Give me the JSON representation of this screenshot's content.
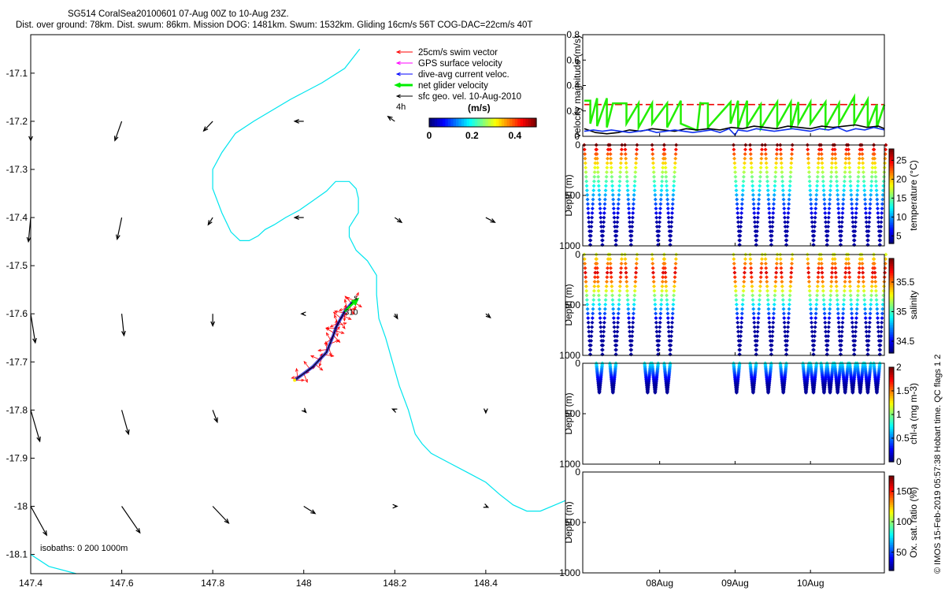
{
  "header": {
    "title": "SG514 CoralSea20100601 07-Aug 00Z to 10-Aug 23Z.",
    "subtitle": "Dist. over ground: 78km. Dist. swum: 86km. Mission DOG: 1481km. Swum: 1532km. Gliding 16cm/s 56T COG-DAC=22cm/s 40T"
  },
  "footer": {
    "credit": "© IMOS 15-Feb-2019 05:57:38 Hobart time. QC flags 1 2"
  },
  "chart_data": [
    {
      "type": "map",
      "x_ticks": [
        "147.4",
        "147.6",
        "147.8",
        "148",
        "148.2",
        "148.4"
      ],
      "x_tick_values": [
        147.4,
        147.6,
        147.8,
        148.0,
        148.2,
        148.4
      ],
      "y_ticks": [
        "-17.1",
        "-17.2",
        "-17.3",
        "-17.4",
        "-17.5",
        "-17.6",
        "-17.7",
        "-17.8",
        "-17.9",
        "-18",
        "-18.1"
      ],
      "y_tick_values": [
        -17.1,
        -17.2,
        -17.3,
        -17.4,
        -17.5,
        -17.6,
        -17.7,
        -17.8,
        -17.9,
        -18.0,
        -18.1
      ],
      "xlim": [
        147.4,
        148.575
      ],
      "ylim": [
        -18.14,
        -17.02
      ],
      "legend": [
        "25cm/s swim vector",
        "GPS surface velocity",
        "dive-avg current veloc.",
        "net glider velocity",
        "sfc geo. vel. 10-Aug-2010"
      ],
      "legend_colors": [
        "#ff0000",
        "#ff00ff",
        "#0000ff",
        "#00ee00",
        "#000000"
      ],
      "legend_placement": "top-right",
      "colorbar_title": "(m/s)",
      "colorbar_ticks": [
        "0",
        "0.2",
        "0.4"
      ],
      "colorbar_tick_values": [
        0,
        0.2,
        0.4
      ],
      "colorbar_range": [
        0,
        0.5
      ],
      "annotation_4h": "4h",
      "isobaths_label": "isobaths: 0   200  1000m",
      "isobath_color": "#00e5ee",
      "isobath_line": [
        [
          148.123,
          -17.05
        ],
        [
          148.09,
          -17.09
        ],
        [
          148.04,
          -17.12
        ],
        [
          147.97,
          -17.155
        ],
        [
          147.89,
          -17.2
        ],
        [
          147.85,
          -17.225
        ],
        [
          147.82,
          -17.265
        ],
        [
          147.8,
          -17.3
        ],
        [
          147.8,
          -17.34
        ],
        [
          147.82,
          -17.39
        ],
        [
          147.84,
          -17.43
        ],
        [
          147.86,
          -17.448
        ],
        [
          147.88,
          -17.448
        ],
        [
          147.9,
          -17.438
        ],
        [
          147.915,
          -17.425
        ],
        [
          147.935,
          -17.415
        ],
        [
          147.96,
          -17.4
        ],
        [
          147.99,
          -17.385
        ],
        [
          148.02,
          -17.365
        ],
        [
          148.05,
          -17.345
        ],
        [
          148.07,
          -17.325
        ],
        [
          148.1,
          -17.325
        ],
        [
          148.115,
          -17.34
        ],
        [
          148.12,
          -17.36
        ],
        [
          148.12,
          -17.39
        ],
        [
          148.11,
          -17.405
        ],
        [
          148.1,
          -17.42
        ],
        [
          148.1,
          -17.44
        ],
        [
          148.115,
          -17.468
        ],
        [
          148.14,
          -17.49
        ],
        [
          148.16,
          -17.52
        ],
        [
          148.16,
          -17.56
        ],
        [
          148.165,
          -17.61
        ],
        [
          148.18,
          -17.65
        ],
        [
          148.195,
          -17.7
        ],
        [
          148.21,
          -17.75
        ],
        [
          148.23,
          -17.8
        ],
        [
          148.245,
          -17.85
        ],
        [
          148.26,
          -17.87
        ],
        [
          148.28,
          -17.89
        ],
        [
          148.32,
          -17.91
        ],
        [
          148.36,
          -17.93
        ],
        [
          148.4,
          -17.95
        ],
        [
          148.43,
          -17.975
        ],
        [
          148.46,
          -17.997
        ],
        [
          148.49,
          -18.01
        ],
        [
          148.52,
          -18.01
        ],
        [
          148.55,
          -17.998
        ],
        [
          148.575,
          -17.988
        ]
      ],
      "isobath_line2": [
        [
          147.4,
          -18.1
        ],
        [
          147.44,
          -18.125
        ],
        [
          147.5,
          -18.14
        ]
      ],
      "geo_vectors": [
        [
          147.4,
          -17.2,
          0.0,
          -0.04
        ],
        [
          147.6,
          -17.2,
          -0.015,
          -0.04
        ],
        [
          147.8,
          -17.2,
          -0.02,
          -0.02
        ],
        [
          148.0,
          -17.2,
          -0.02,
          0.0
        ],
        [
          148.2,
          -17.2,
          -0.015,
          0.01
        ],
        [
          147.4,
          -17.4,
          -0.005,
          -0.05
        ],
        [
          147.6,
          -17.4,
          -0.01,
          -0.045
        ],
        [
          147.8,
          -17.4,
          -0.01,
          -0.015
        ],
        [
          148.0,
          -17.4,
          -0.02,
          0.0
        ],
        [
          148.2,
          -17.4,
          0.015,
          -0.01
        ],
        [
          148.4,
          -17.4,
          0.02,
          -0.01
        ],
        [
          147.4,
          -17.6,
          0.01,
          -0.06
        ],
        [
          147.6,
          -17.6,
          0.005,
          -0.045
        ],
        [
          147.8,
          -17.6,
          0.0,
          -0.025
        ],
        [
          148.0,
          -17.6,
          -0.005,
          0.0
        ],
        [
          148.2,
          -17.6,
          0.006,
          -0.01
        ],
        [
          148.4,
          -17.6,
          0.01,
          -0.008
        ],
        [
          147.4,
          -17.8,
          0.02,
          -0.065
        ],
        [
          147.6,
          -17.8,
          0.015,
          -0.05
        ],
        [
          147.8,
          -17.8,
          0.01,
          -0.025
        ],
        [
          148.0,
          -17.8,
          0.005,
          -0.005
        ],
        [
          148.2,
          -17.8,
          -0.005,
          0.002
        ],
        [
          148.4,
          -17.8,
          0.0,
          -0.006
        ],
        [
          147.4,
          -18.0,
          0.035,
          -0.06
        ],
        [
          147.6,
          -18.0,
          0.04,
          -0.055
        ],
        [
          147.8,
          -18.0,
          0.035,
          -0.035
        ],
        [
          148.0,
          -18.0,
          0.025,
          -0.015
        ],
        [
          148.2,
          -18.0,
          0.005,
          0.0
        ],
        [
          148.4,
          -18.0,
          0.005,
          -0.002
        ]
      ],
      "glider_track": [
        [
          147.98,
          -17.738
        ],
        [
          148.02,
          -17.71
        ],
        [
          148.05,
          -17.68
        ],
        [
          148.065,
          -17.645
        ],
        [
          148.07,
          -17.63
        ],
        [
          148.08,
          -17.612
        ],
        [
          148.09,
          -17.595
        ],
        [
          148.105,
          -17.578
        ],
        [
          148.118,
          -17.57
        ]
      ],
      "dive_labels": [
        "s",
        "310"
      ]
    },
    {
      "type": "line",
      "ylabel": "velocity magnitude (m/s)",
      "ylim": [
        0,
        0.8
      ],
      "y_ticks": [
        "0",
        "0.2",
        "0.4",
        "0.6",
        "0.8"
      ],
      "y_tick_values": [
        0,
        0.2,
        0.4,
        0.6,
        0.8
      ],
      "x_ticks": [
        "08Aug",
        "09Aug",
        "10Aug"
      ],
      "x_tick_values": [
        1,
        2,
        3
      ],
      "xlim": [
        -0.02,
        3.98
      ],
      "series": [
        {
          "color": "#ee0000",
          "style": "dashed",
          "x": [
            0.0,
            1.0,
            2.0,
            3.98
          ],
          "values": [
            0.25,
            0.25,
            0.25,
            0.25
          ]
        },
        {
          "color": "#22ee00",
          "x": [
            0.0,
            0.08,
            0.08,
            0.17,
            0.17,
            0.3,
            0.3,
            0.38,
            0.38,
            0.56,
            0.56,
            0.72,
            0.72,
            0.9,
            0.9,
            1.1,
            1.1,
            1.28,
            1.28,
            1.48,
            1.5,
            1.54,
            1.54,
            1.64,
            1.64,
            1.94,
            1.94,
            2.04,
            2.04,
            2.16,
            2.16,
            2.34,
            2.34,
            2.56,
            2.56,
            2.74,
            2.74,
            2.84,
            2.84,
            3.0,
            3.0,
            3.2,
            3.2,
            3.38,
            3.38,
            3.58,
            3.58,
            3.76,
            3.76,
            3.88,
            3.88,
            3.98
          ],
          "values": [
            0.28,
            0.28,
            0.1,
            0.3,
            0.08,
            0.3,
            0.07,
            0.26,
            0.26,
            0.26,
            0.1,
            0.26,
            0.07,
            0.26,
            0.1,
            0.26,
            0.07,
            0.28,
            0.1,
            0.05,
            0.05,
            0.27,
            0.26,
            0.26,
            0.07,
            0.27,
            0.1,
            0.28,
            0.07,
            0.28,
            0.08,
            0.25,
            0.06,
            0.27,
            0.08,
            0.27,
            0.06,
            0.27,
            0.1,
            0.27,
            0.1,
            0.27,
            0.07,
            0.26,
            0.1,
            0.31,
            0.1,
            0.29,
            0.07,
            0.25,
            0.07,
            0.25
          ]
        },
        {
          "color": "#000000",
          "x": [
            0.0,
            0.15,
            0.3,
            0.45,
            0.6,
            0.75,
            0.9,
            1.05,
            1.2,
            1.35,
            1.5,
            1.65,
            1.8,
            1.95,
            2.1,
            2.25,
            2.4,
            2.55,
            2.7,
            2.85,
            3.0,
            3.15,
            3.3,
            3.45,
            3.6,
            3.75,
            3.9,
            3.98
          ],
          "values": [
            0.06,
            0.03,
            0.02,
            0.03,
            0.05,
            0.04,
            0.06,
            0.05,
            0.04,
            0.06,
            0.05,
            0.06,
            0.05,
            0.07,
            0.06,
            0.08,
            0.07,
            0.06,
            0.08,
            0.07,
            0.06,
            0.08,
            0.07,
            0.08,
            0.09,
            0.07,
            0.08,
            0.06
          ]
        },
        {
          "color": "#1030ee",
          "x": [
            0.0,
            0.12,
            0.24,
            0.36,
            0.48,
            0.6,
            0.72,
            0.84,
            0.96,
            1.08,
            1.2,
            1.32,
            1.44,
            1.56,
            1.68,
            1.8,
            1.92,
            2.0,
            2.04,
            2.16,
            2.28,
            2.4,
            2.52,
            2.64,
            2.76,
            2.88,
            3.0,
            3.12,
            3.24,
            3.36,
            3.48,
            3.6,
            3.72,
            3.84,
            3.98
          ],
          "values": [
            0.04,
            0.05,
            0.04,
            0.05,
            0.04,
            0.03,
            0.04,
            0.05,
            0.03,
            0.04,
            0.05,
            0.04,
            0.03,
            0.04,
            0.05,
            0.03,
            0.06,
            0.01,
            0.05,
            0.04,
            0.06,
            0.05,
            0.04,
            0.05,
            0.06,
            0.05,
            0.04,
            0.06,
            0.05,
            0.07,
            0.04,
            0.06,
            0.05,
            0.07,
            0.05
          ]
        }
      ]
    },
    {
      "type": "scatter",
      "ylabel": "Depth (m)",
      "ylim": [
        0,
        1000
      ],
      "y_ticks": [
        "0",
        "500",
        "1000"
      ],
      "y_tick_values": [
        0,
        500,
        1000
      ],
      "colorbar_label": "temperature (°C)",
      "colorbar_ticks": [
        "5",
        "10",
        "15",
        "20",
        "25"
      ],
      "colorbar_tick_values": [
        5,
        10,
        15,
        20,
        25
      ],
      "colorbar_range": [
        3,
        28
      ],
      "surface_value": 27,
      "deep_value": 4,
      "deep_dive_depth": 990,
      "dive_starts": [
        0.0,
        0.16,
        0.34,
        0.54,
        0.9,
        1.06,
        1.98,
        2.2,
        2.4,
        2.6,
        2.96,
        3.14,
        3.32,
        3.5,
        3.68,
        3.84
      ],
      "dive_half_width": 0.08
    },
    {
      "type": "scatter",
      "ylabel": "Depth (m)",
      "ylim": [
        0,
        1000
      ],
      "y_ticks": [
        "0",
        "500",
        "1000"
      ],
      "y_tick_values": [
        0,
        500,
        1000
      ],
      "colorbar_label": "salinity",
      "colorbar_ticks": [
        "34.5",
        "35",
        "35.5"
      ],
      "colorbar_tick_values": [
        34.5,
        35,
        35.5
      ],
      "colorbar_range": [
        34.3,
        35.9
      ],
      "surface_value": 35.25,
      "deep_value": 34.35,
      "max_value": 35.75,
      "max_depth": 180,
      "deep_dive_depth": 990,
      "dive_starts": [
        0.0,
        0.16,
        0.34,
        0.54,
        0.9,
        1.06,
        1.98,
        2.2,
        2.4,
        2.6,
        2.96,
        3.14,
        3.32,
        3.5,
        3.68,
        3.84
      ],
      "dive_half_width": 0.08
    },
    {
      "type": "scatter",
      "ylabel": "Depth (m)",
      "ylim": [
        0,
        1000
      ],
      "y_ticks": [
        "0",
        "500",
        "1000"
      ],
      "y_tick_values": [
        0,
        500,
        1000
      ],
      "colorbar_label": "chl-a (mg m-3)",
      "colorbar_ticks": [
        "0",
        "0.5",
        "1",
        "1.5",
        "2"
      ],
      "colorbar_tick_values": [
        0,
        0.5,
        1,
        1.5,
        2
      ],
      "colorbar_range": [
        0,
        2
      ],
      "max_depth": 290,
      "surface_value": 0.8,
      "deep_value": 0.05,
      "dive_starts": [
        0.16,
        0.34,
        0.8,
        0.9,
        1.06,
        1.98,
        2.2,
        2.4,
        2.6,
        2.9,
        3.0,
        3.14,
        3.22,
        3.32,
        3.42,
        3.52,
        3.62,
        3.72,
        3.84
      ],
      "dive_half_width": 0.04
    },
    {
      "type": "scatter",
      "ylabel": "Depth (m)",
      "ylim": [
        0,
        1000
      ],
      "y_ticks": [
        "0",
        "500",
        "1000"
      ],
      "y_tick_values": [
        0,
        500,
        1000
      ],
      "colorbar_label": "Ox. sat. ratio (%)",
      "colorbar_ticks": [
        "50",
        "100",
        "150"
      ],
      "colorbar_tick_values": [
        50,
        100,
        150
      ],
      "colorbar_range": [
        20,
        175
      ],
      "x_ticks": [
        "08Aug",
        "09Aug",
        "10Aug"
      ],
      "x_tick_values": [
        1,
        2,
        3
      ]
    }
  ]
}
